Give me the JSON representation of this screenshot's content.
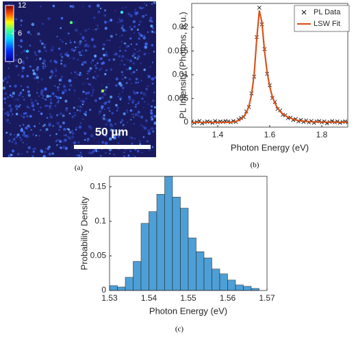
{
  "chart_data": [
    {
      "type": "image",
      "colorbar": {
        "clim": [
          0,
          12
        ],
        "ticks": [
          0,
          6,
          12
        ]
      },
      "scale_bar": "50 µm",
      "caption": "(a)"
    },
    {
      "type": "scatter-line",
      "xlabel": "Photon Energy (eV)",
      "ylabel": "PL Intensity (Photons, a.u.)",
      "caption": "(b)",
      "xlim": [
        1.3,
        1.9
      ],
      "xticks": [
        1.4,
        1.6,
        1.8
      ],
      "ylim": [
        -0.001,
        0.025
      ],
      "yticks": [
        0,
        0.005,
        0.01,
        0.015,
        0.02
      ],
      "legend": "upper right",
      "x": [
        1.3,
        1.31,
        1.32,
        1.33,
        1.34,
        1.35,
        1.36,
        1.37,
        1.38,
        1.39,
        1.4,
        1.41,
        1.42,
        1.43,
        1.44,
        1.45,
        1.46,
        1.47,
        1.48,
        1.49,
        1.5,
        1.51,
        1.52,
        1.53,
        1.54,
        1.55,
        1.56,
        1.57,
        1.58,
        1.59,
        1.6,
        1.61,
        1.62,
        1.63,
        1.64,
        1.65,
        1.66,
        1.67,
        1.68,
        1.69,
        1.7,
        1.71,
        1.72,
        1.73,
        1.74,
        1.75,
        1.76,
        1.77,
        1.78,
        1.79,
        1.8,
        1.81,
        1.82,
        1.83,
        1.84,
        1.85,
        1.86,
        1.87,
        1.88,
        1.89,
        1.9
      ],
      "series": [
        {
          "name": "PL Data",
          "color": "#000000",
          "marker": "x",
          "values": [
            0.0002,
            -0.0001,
            0.0001,
            0.0003,
            -0.0002,
            0,
            0.0002,
            0.0001,
            -0.0001,
            0.0003,
            0,
            0.0002,
            0.0001,
            0.0003,
            0.0002,
            0,
            0.0003,
            0.0001,
            0.0006,
            0.0009,
            0.0011,
            0.0023,
            0.0032,
            0.0061,
            0.0096,
            0.0179,
            0.0241,
            0.0206,
            0.0154,
            0.0102,
            0.0078,
            0.0051,
            0.0043,
            0.0028,
            0.0025,
            0.0016,
            0.0015,
            0.0009,
            0.001,
            0.0005,
            0.0007,
            0.0002,
            0.0005,
            0.0001,
            0.0004,
            0,
            0.0003,
            -0.0001,
            0.0002,
            0.0003,
            0,
            0.0002,
            -0.0002,
            0.0001,
            0.0003,
            0,
            0.0002,
            -0.0001,
            0.0001,
            0.0002,
            0
          ]
        },
        {
          "name": "LSW Fit",
          "color": "#d95319",
          "marker": "line",
          "values": [
            0,
            0,
            0,
            0,
            0,
            0,
            0,
            0,
            0,
            0,
            0,
            0,
            0,
            0,
            0,
            0,
            0.0001,
            0.0002,
            0.0004,
            0.0007,
            0.0012,
            0.002,
            0.0034,
            0.0058,
            0.01,
            0.0175,
            0.0235,
            0.021,
            0.015,
            0.0105,
            0.0075,
            0.0054,
            0.004,
            0.003,
            0.0023,
            0.0018,
            0.0014,
            0.0011,
            0.0009,
            0.0007,
            0.0005,
            0.0004,
            0.0003,
            0.00025,
            0.0002,
            0.00015,
            0.00012,
            0.0001,
            9e-05,
            8e-05,
            7e-05,
            6e-05,
            5e-05,
            5e-05,
            4e-05,
            4e-05,
            3e-05,
            3e-05,
            3e-05,
            2e-05,
            2e-05
          ]
        }
      ]
    },
    {
      "type": "histogram",
      "xlabel": "Photon Energy (eV)",
      "ylabel": "Probability Density",
      "caption": "(c)",
      "color": "#4d9fd6",
      "xlim": [
        1.53,
        1.57
      ],
      "xticks": [
        1.53,
        1.54,
        1.55,
        1.56,
        1.57
      ],
      "ylim": [
        0,
        0.165
      ],
      "yticks": [
        0,
        0.05,
        0.1,
        0.15
      ],
      "bins": [
        1.53,
        1.532,
        1.534,
        1.536,
        1.538,
        1.54,
        1.542,
        1.544,
        1.546,
        1.548,
        1.55,
        1.552,
        1.554,
        1.556,
        1.558,
        1.56,
        1.562,
        1.564,
        1.566,
        1.568
      ],
      "counts": [
        0.007,
        0.005,
        0.019,
        0.042,
        0.097,
        0.114,
        0.139,
        0.165,
        0.135,
        0.119,
        0.076,
        0.056,
        0.047,
        0.031,
        0.024,
        0.015,
        0.008,
        0.006,
        0.003
      ]
    }
  ]
}
